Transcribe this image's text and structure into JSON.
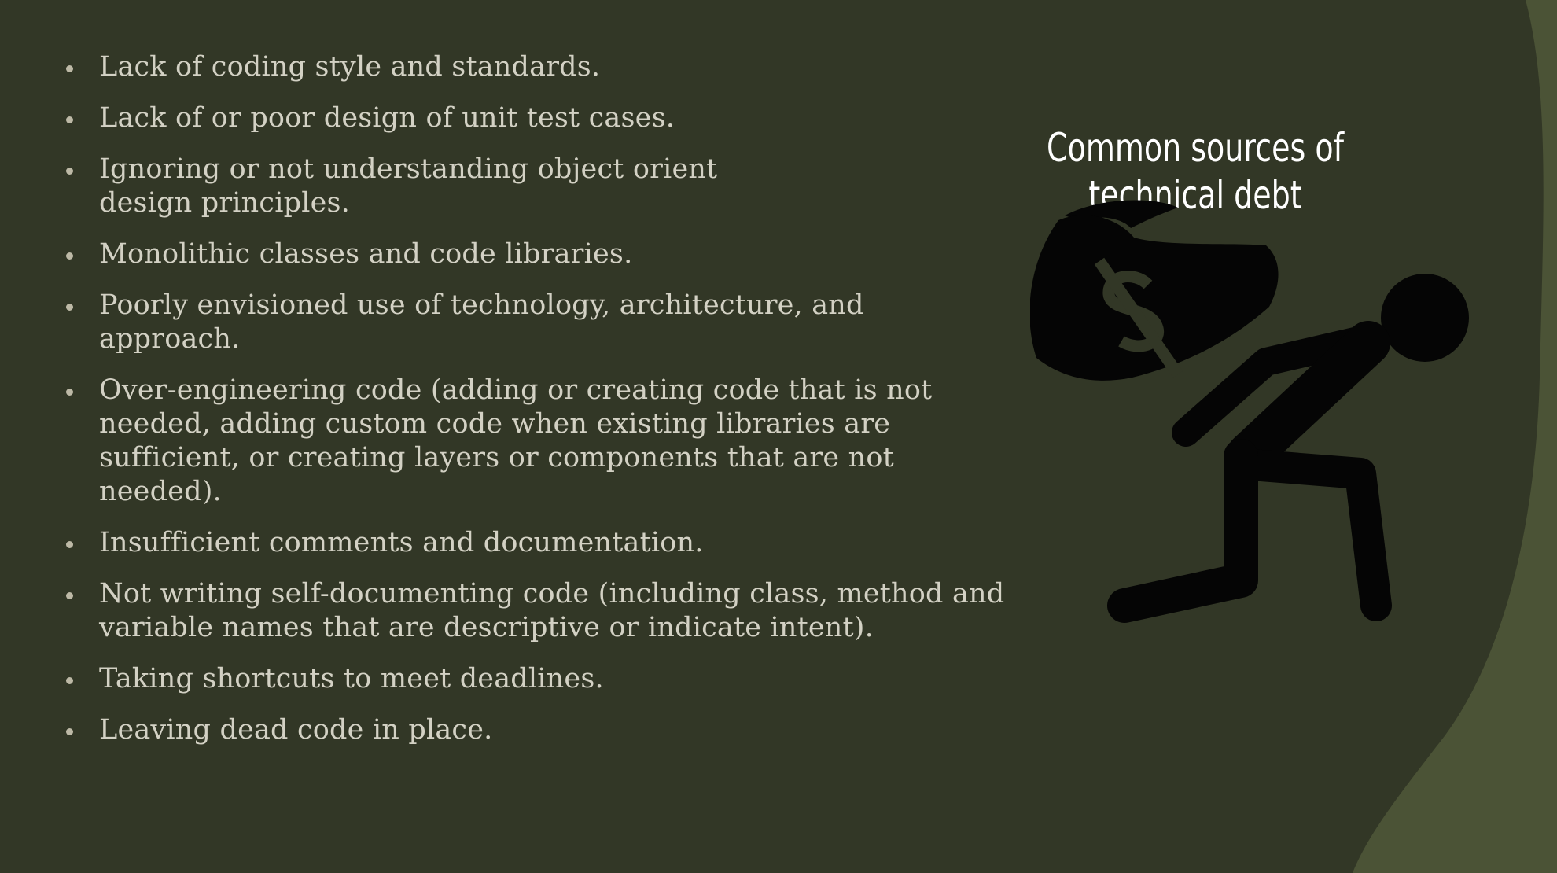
{
  "slide": {
    "title": "Common sources of technical debt",
    "bullets": [
      "Lack of coding style and standards.",
      "Lack of or poor design of unit test cases.",
      "Ignoring or not understanding object orient design principles.",
      "Monolithic classes and code libraries.",
      "Poorly envisioned use of technology, architecture, and approach.",
      "Over-engineering code (adding or creating code that is not needed, adding custom code when existing libraries are sufficient, or creating layers or components that are not needed).",
      "Insufficient comments and documentation.",
      "Not writing self-documenting code (including class, method and variable names that are descriptive or indicate intent).",
      "Taking shortcuts to meet deadlines.",
      "Leaving dead code in place."
    ]
  },
  "illustration": {
    "icon": "person-carrying-money-bag-icon",
    "symbol": "dollar-sign-icon"
  },
  "colors": {
    "background_dark": "#323726",
    "background_accent": "#4b5336",
    "text": "#d3d1c4",
    "title": "#ffffff",
    "icon": "#050505"
  }
}
